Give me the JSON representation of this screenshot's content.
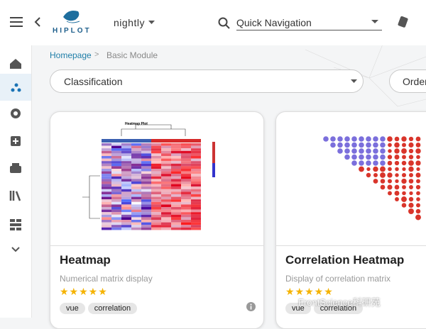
{
  "header": {
    "logo": "HIPLOT",
    "version": "nightly",
    "search_placeholder": "Quick Navigation"
  },
  "breadcrumb": {
    "home": "Homepage",
    "separator": ">",
    "current": "Basic Module"
  },
  "filters": {
    "classification": "Classification",
    "order": "Order"
  },
  "cards": [
    {
      "title": "Heatmap",
      "description": "Numerical matrix display",
      "tags": [
        "vue",
        "correlation"
      ],
      "image_title": "Heatmap Plot"
    },
    {
      "title": "Correlation Heatmap",
      "description": "Display of correlation matrix",
      "tags": [
        "vue",
        "correlation"
      ]
    }
  ],
  "watermark": "FrontScience科研苑"
}
